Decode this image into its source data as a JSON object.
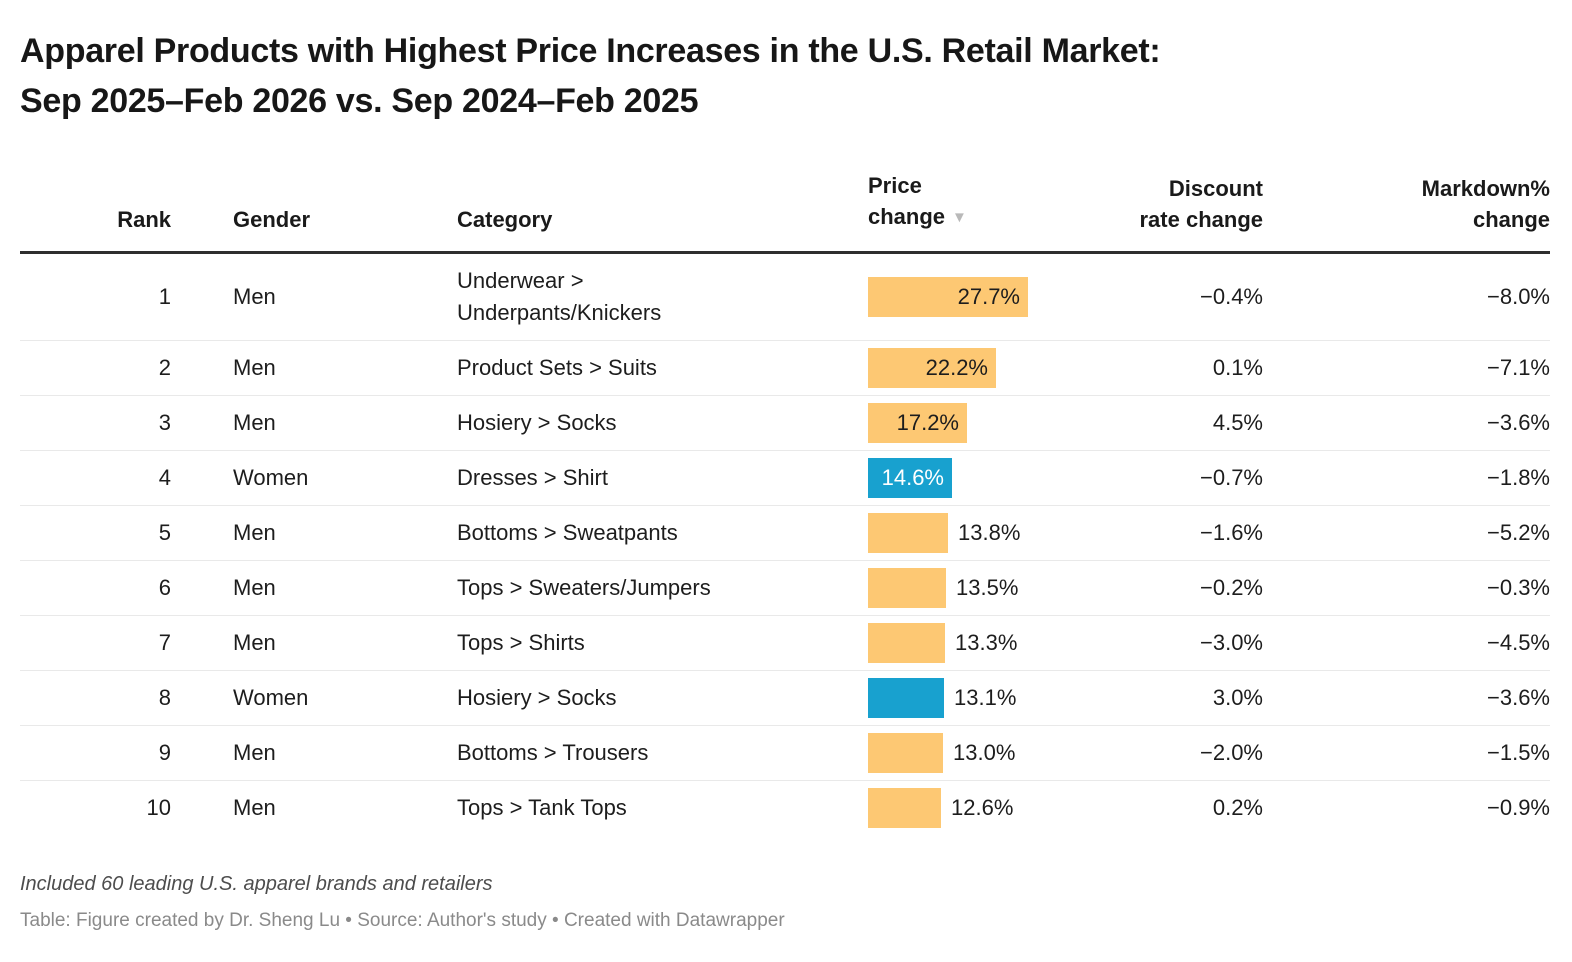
{
  "title_lines": [
    "Apparel Products with Highest Price Increases in the U.S. Retail Market:",
    "Sep 2025–Feb 2026 vs. Sep 2024–Feb 2025"
  ],
  "header": {
    "rank": "Rank",
    "gender": "Gender",
    "category": "Category",
    "price_line1": "Price",
    "price_line2": "change",
    "sort_icon": "▼",
    "discount_line1": "Discount",
    "discount_line2": "rate change",
    "markdown_line1": "Markdown%",
    "markdown_line2": "change"
  },
  "colors": {
    "bar_men": "#FDC873",
    "bar_women": "#18A1CF",
    "label_dark": "#1d1d1d",
    "label_white": "#ffffff"
  },
  "rows": [
    {
      "rank": "1",
      "gender": "Men",
      "category_lines": [
        "Underwear >",
        "Underpants/Knickers"
      ],
      "price_change": "27.7%",
      "price_value": 27.7,
      "label_position": "inside",
      "label_color": "dark",
      "discount": "−0.4%",
      "markdown": "−8.0%"
    },
    {
      "rank": "2",
      "gender": "Men",
      "category_lines": [
        "Product Sets > Suits"
      ],
      "price_change": "22.2%",
      "price_value": 22.2,
      "label_position": "inside",
      "label_color": "dark",
      "discount": "0.1%",
      "markdown": "−7.1%"
    },
    {
      "rank": "3",
      "gender": "Men",
      "category_lines": [
        "Hosiery > Socks"
      ],
      "price_change": "17.2%",
      "price_value": 17.2,
      "label_position": "inside",
      "label_color": "dark",
      "discount": "4.5%",
      "markdown": "−3.6%"
    },
    {
      "rank": "4",
      "gender": "Women",
      "category_lines": [
        "Dresses > Shirt"
      ],
      "price_change": "14.6%",
      "price_value": 14.6,
      "label_position": "inside",
      "label_color": "white",
      "discount": "−0.7%",
      "markdown": "−1.8%"
    },
    {
      "rank": "5",
      "gender": "Men",
      "category_lines": [
        "Bottoms > Sweatpants"
      ],
      "price_change": "13.8%",
      "price_value": 13.8,
      "label_position": "outside",
      "label_color": "dark",
      "discount": "−1.6%",
      "markdown": "−5.2%"
    },
    {
      "rank": "6",
      "gender": "Men",
      "category_lines": [
        "Tops > Sweaters/Jumpers"
      ],
      "price_change": "13.5%",
      "price_value": 13.5,
      "label_position": "outside",
      "label_color": "dark",
      "discount": "−0.2%",
      "markdown": "−0.3%"
    },
    {
      "rank": "7",
      "gender": "Men",
      "category_lines": [
        "Tops > Shirts"
      ],
      "price_change": "13.3%",
      "price_value": 13.3,
      "label_position": "outside",
      "label_color": "dark",
      "discount": "−3.0%",
      "markdown": "−4.5%"
    },
    {
      "rank": "8",
      "gender": "Women",
      "category_lines": [
        "Hosiery > Socks"
      ],
      "price_change": "13.1%",
      "price_value": 13.1,
      "label_position": "outside",
      "label_color": "dark",
      "discount": "3.0%",
      "markdown": "−3.6%"
    },
    {
      "rank": "9",
      "gender": "Men",
      "category_lines": [
        "Bottoms > Trousers"
      ],
      "price_change": "13.0%",
      "price_value": 13.0,
      "label_position": "outside",
      "label_color": "dark",
      "discount": "−2.0%",
      "markdown": "−1.5%"
    },
    {
      "rank": "10",
      "gender": "Men",
      "category_lines": [
        "Tops > Tank Tops"
      ],
      "price_change": "12.6%",
      "price_value": 12.6,
      "label_position": "outside",
      "label_color": "dark",
      "discount": "0.2%",
      "markdown": "−0.9%"
    }
  ],
  "chart_data": {
    "type": "table",
    "title": "Apparel Products with Highest Price Increases in the U.S. Retail Market: Sep 2025–Feb 2026 vs. Sep 2024–Feb 2025",
    "columns": [
      "Rank",
      "Gender",
      "Category",
      "Price change",
      "Discount rate change",
      "Markdown% change"
    ],
    "rows": [
      [
        1,
        "Men",
        "Underwear > Underpants/Knickers",
        27.7,
        -0.4,
        -8.0
      ],
      [
        2,
        "Men",
        "Product Sets > Suits",
        22.2,
        0.1,
        -7.1
      ],
      [
        3,
        "Men",
        "Hosiery > Socks",
        17.2,
        4.5,
        -3.6
      ],
      [
        4,
        "Women",
        "Dresses > Shirt",
        14.6,
        -0.7,
        -1.8
      ],
      [
        5,
        "Men",
        "Bottoms > Sweatpants",
        13.8,
        -1.6,
        -5.2
      ],
      [
        6,
        "Men",
        "Tops > Sweaters/Jumpers",
        13.5,
        -0.2,
        -0.3
      ],
      [
        7,
        "Men",
        "Tops > Shirts",
        13.3,
        -3.0,
        -4.5
      ],
      [
        8,
        "Women",
        "Hosiery > Socks",
        13.1,
        3.0,
        -3.6
      ],
      [
        9,
        "Men",
        "Bottoms > Trousers",
        13.0,
        -2.0,
        -1.5
      ],
      [
        10,
        "Men",
        "Tops > Tank Tops",
        12.6,
        0.2,
        -0.9
      ]
    ],
    "bar_column": "Price change",
    "bar_value_range": [
      0,
      27.7
    ],
    "sorted_by": "Price change descending",
    "bar_color_by_gender": {
      "Men": "#FDC873",
      "Women": "#18A1CF"
    }
  },
  "footer": {
    "note": "Included 60 leading U.S. apparel brands and retailers",
    "credits": "Table: Figure created by Dr. Sheng Lu • Source: Author's study  • Created with Datawrapper"
  }
}
